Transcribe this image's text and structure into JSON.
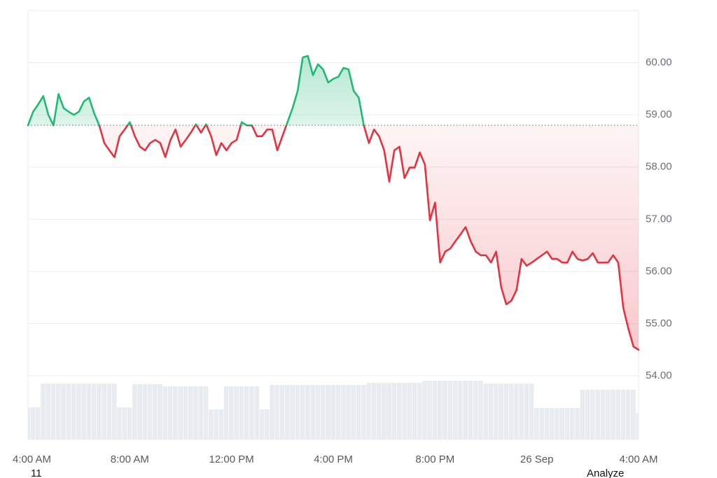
{
  "chart_data": {
    "type": "line",
    "baseline": 58.8,
    "values": [
      58.8,
      59.06,
      59.2,
      59.36,
      59.0,
      58.8,
      59.4,
      59.13,
      59.06,
      59.0,
      59.06,
      59.26,
      59.33,
      59.03,
      58.8,
      58.46,
      58.32,
      58.19,
      58.59,
      58.72,
      58.86,
      58.59,
      58.39,
      58.32,
      58.46,
      58.52,
      58.46,
      58.19,
      58.52,
      58.72,
      58.39,
      58.52,
      58.66,
      58.82,
      58.66,
      58.82,
      58.59,
      58.23,
      58.46,
      58.32,
      58.46,
      58.52,
      58.86,
      58.8,
      58.8,
      58.59,
      58.59,
      58.72,
      58.72,
      58.32,
      58.59,
      58.86,
      59.13,
      59.46,
      60.1,
      60.13,
      59.76,
      59.97,
      59.87,
      59.62,
      59.69,
      59.73,
      59.9,
      59.87,
      59.46,
      59.33,
      58.8,
      58.46,
      58.72,
      58.59,
      58.32,
      57.72,
      58.32,
      58.39,
      57.79,
      57.99,
      57.99,
      58.28,
      58.05,
      56.98,
      57.32,
      56.17,
      56.38,
      56.44,
      56.58,
      56.71,
      56.85,
      56.58,
      56.38,
      56.31,
      56.31,
      56.17,
      56.38,
      55.7,
      55.37,
      55.44,
      55.64,
      56.24,
      56.11,
      56.17,
      56.24,
      56.31,
      56.38,
      56.24,
      56.24,
      56.17,
      56.17,
      56.38,
      56.24,
      56.21,
      56.24,
      56.35,
      56.17,
      56.17,
      56.17,
      56.31,
      56.17,
      55.3,
      54.9,
      54.56,
      54.5
    ],
    "volume": [
      46,
      46,
      46,
      80,
      80,
      80,
      80,
      80,
      80,
      80,
      80,
      80,
      80,
      80,
      80,
      80,
      80,
      80,
      46,
      46,
      46,
      79,
      79,
      79,
      79,
      79,
      79,
      76,
      76,
      76,
      76,
      76,
      76,
      76,
      76,
      76,
      43,
      43,
      43,
      76,
      76,
      76,
      76,
      76,
      76,
      76,
      43,
      43,
      78,
      78,
      78,
      78,
      78,
      78,
      78,
      78,
      78,
      78,
      78,
      78,
      78,
      78,
      78,
      78,
      78,
      78,
      78,
      81,
      81,
      81,
      81,
      81,
      81,
      81,
      81,
      81,
      81,
      81,
      84,
      84,
      84,
      84,
      84,
      84,
      84,
      84,
      84,
      84,
      84,
      84,
      80,
      80,
      80,
      80,
      80,
      80,
      80,
      80,
      80,
      80,
      45,
      45,
      45,
      45,
      45,
      45,
      45,
      45,
      45,
      71,
      71,
      71,
      71,
      71,
      71,
      71,
      71,
      71,
      71,
      71,
      38
    ],
    "up_color": "#1fba74",
    "down_color": "#e5323e",
    "volume_color": "#e8ecf0",
    "ylim": [
      52.78,
      61.0
    ],
    "yticks": [
      {
        "value": 54,
        "label": "54.00"
      },
      {
        "value": 55,
        "label": "55.00"
      },
      {
        "value": 56,
        "label": "56.00"
      },
      {
        "value": 57,
        "label": "57.00"
      },
      {
        "value": 58,
        "label": "58.00"
      },
      {
        "value": 59,
        "label": "59.00"
      },
      {
        "value": 60,
        "label": "60.00"
      }
    ],
    "xticks": [
      {
        "value": 0,
        "label": "4:00 AM"
      },
      {
        "value": 20,
        "label": "8:00 AM"
      },
      {
        "value": 40,
        "label": "12:00 PM"
      },
      {
        "value": 60,
        "label": "4:00 PM"
      },
      {
        "value": 80,
        "label": "8:00 PM"
      },
      {
        "value": 100,
        "label": "26 Sep"
      },
      {
        "value": 120,
        "label": "4:00 AM"
      }
    ],
    "grid": true
  },
  "footer": {
    "left": "11",
    "right": "Analyze"
  }
}
